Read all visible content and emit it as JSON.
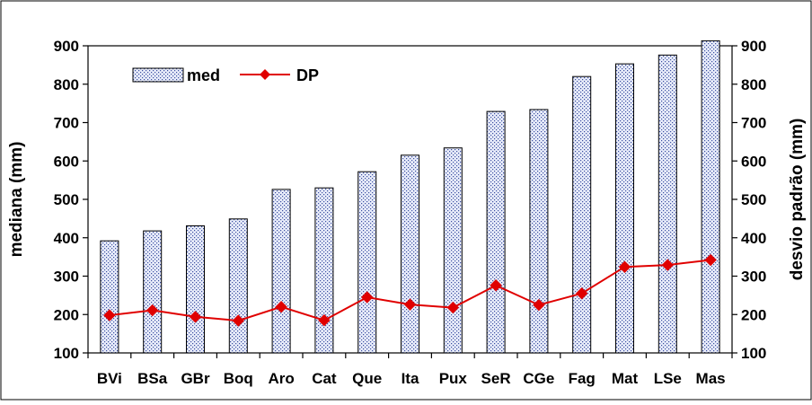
{
  "chart_data": {
    "type": "bar",
    "categories": [
      "BVi",
      "BSa",
      "GBr",
      "Boq",
      "Aro",
      "Cat",
      "Que",
      "Ita",
      "Pux",
      "SeR",
      "CGe",
      "Fag",
      "Mat",
      "LSe",
      "Mas"
    ],
    "series": [
      {
        "name": "med",
        "type": "bar",
        "axis": "left",
        "values": [
          392,
          418,
          431,
          449,
          526,
          530,
          572,
          615,
          634,
          729,
          734,
          820,
          853,
          876,
          913
        ]
      },
      {
        "name": "DP",
        "type": "line",
        "axis": "right",
        "values": [
          198,
          211,
          194,
          184,
          220,
          185,
          245,
          226,
          218,
          276,
          225,
          255,
          324,
          329,
          342
        ]
      }
    ],
    "ylabel": "mediana (mm)",
    "y2label": "desvio padrão (mm)",
    "xlabel": "",
    "ylim": [
      100,
      900
    ],
    "y2lim": [
      100,
      900
    ],
    "yticks": [
      100,
      200,
      300,
      400,
      500,
      600,
      700,
      800,
      900
    ],
    "y2ticks": [
      100,
      200,
      300,
      400,
      500,
      600,
      700,
      800,
      900
    ],
    "legend": {
      "placement": "top-left",
      "items": [
        "med",
        "DP"
      ]
    },
    "grid": false,
    "colors": {
      "bar_fill": "#e8ecfa",
      "bar_dots": "#3a4ea0",
      "bar_stroke": "#000000",
      "line": "#e00000",
      "marker": "#e00000"
    }
  }
}
